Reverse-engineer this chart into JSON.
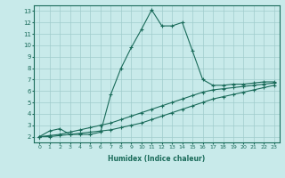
{
  "xlabel": "Humidex (Indice chaleur)",
  "ylabel": "",
  "xlim": [
    -0.5,
    23.5
  ],
  "ylim": [
    1.5,
    13.5
  ],
  "xticks": [
    0,
    1,
    2,
    3,
    4,
    5,
    6,
    7,
    8,
    9,
    10,
    11,
    12,
    13,
    14,
    15,
    16,
    17,
    18,
    19,
    20,
    21,
    22,
    23
  ],
  "yticks": [
    2,
    3,
    4,
    5,
    6,
    7,
    8,
    9,
    10,
    11,
    12,
    13
  ],
  "bg_color": "#c8eaea",
  "grid_color": "#a0cccc",
  "line_color": "#1a6b5a",
  "line1_x": [
    0,
    1,
    2,
    3,
    4,
    5,
    6,
    7,
    8,
    9,
    10,
    11,
    12,
    13,
    14,
    15,
    16,
    17,
    18,
    19,
    20,
    21,
    22,
    23
  ],
  "line1_y": [
    2.0,
    2.5,
    2.7,
    2.2,
    2.2,
    2.2,
    2.4,
    5.7,
    8.0,
    9.8,
    11.4,
    13.1,
    11.7,
    11.7,
    12.0,
    9.5,
    7.0,
    6.5,
    6.5,
    6.6,
    6.6,
    6.7,
    6.8,
    6.8
  ],
  "line2_x": [
    0,
    1,
    2,
    3,
    4,
    5,
    6,
    7,
    8,
    9,
    10,
    11,
    12,
    13,
    14,
    15,
    16,
    17,
    18,
    19,
    20,
    21,
    22,
    23
  ],
  "line2_y": [
    2.0,
    2.1,
    2.2,
    2.4,
    2.6,
    2.8,
    3.0,
    3.2,
    3.5,
    3.8,
    4.1,
    4.4,
    4.7,
    5.0,
    5.3,
    5.6,
    5.9,
    6.1,
    6.2,
    6.3,
    6.4,
    6.5,
    6.6,
    6.7
  ],
  "line3_x": [
    0,
    1,
    2,
    3,
    4,
    5,
    6,
    7,
    8,
    9,
    10,
    11,
    12,
    13,
    14,
    15,
    16,
    17,
    18,
    19,
    20,
    21,
    22,
    23
  ],
  "line3_y": [
    2.0,
    2.0,
    2.1,
    2.2,
    2.3,
    2.4,
    2.5,
    2.6,
    2.8,
    3.0,
    3.2,
    3.5,
    3.8,
    4.1,
    4.4,
    4.7,
    5.0,
    5.3,
    5.5,
    5.7,
    5.9,
    6.1,
    6.3,
    6.5
  ]
}
